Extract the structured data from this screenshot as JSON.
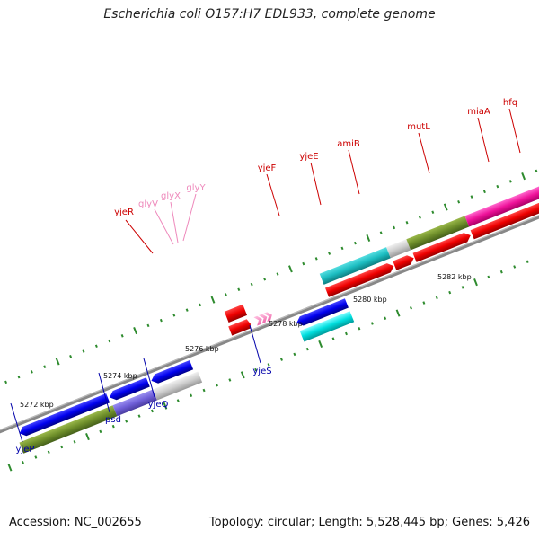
{
  "title": "Escherichia coli O157:H7 EDL933, complete genome",
  "footer": {
    "accession": "Accession: NC_002655",
    "stats": "Topology: circular; Length: 5,528,445 bp; Genes: 5,426"
  },
  "colors": {
    "forward_label": "#cc0000",
    "reverse_label": "#0000aa",
    "trna_label": "#ee88bb",
    "backbone": "#888888",
    "tick": "#2e8b2e"
  },
  "ticks": [
    {
      "label": "5272 kbp"
    },
    {
      "label": "5274 kbp"
    },
    {
      "label": "5276 kbp"
    },
    {
      "label": "5278 kbp"
    },
    {
      "label": "5280 kbp"
    },
    {
      "label": "5282 kbp"
    }
  ],
  "forward_genes": [
    {
      "name": "yjeR",
      "color": "#cc0000"
    },
    {
      "name": "glyV",
      "color": "#ee88bb"
    },
    {
      "name": "glyX",
      "color": "#ee88bb"
    },
    {
      "name": "glyY",
      "color": "#ee88bb"
    },
    {
      "name": "yjeF",
      "color": "#cc0000"
    },
    {
      "name": "yjeE",
      "color": "#cc0000"
    },
    {
      "name": "amiB",
      "color": "#cc0000"
    },
    {
      "name": "mutL",
      "color": "#cc0000"
    },
    {
      "name": "miaA",
      "color": "#cc0000"
    },
    {
      "name": "hfq",
      "color": "#cc0000"
    }
  ],
  "reverse_genes": [
    {
      "name": "yjeP",
      "color": "#0000aa"
    },
    {
      "name": "psd",
      "color": "#0000aa"
    },
    {
      "name": "yjeQ",
      "color": "#0000aa"
    },
    {
      "name": "yjeS",
      "color": "#0000aa"
    }
  ]
}
